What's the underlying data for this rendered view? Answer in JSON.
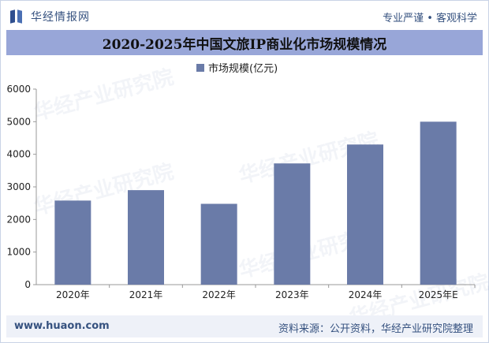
{
  "brand": {
    "name": "华经情报网",
    "logo_icon": "huajing-logo-icon"
  },
  "tagline": "专业严谨 • 客观科学",
  "title": "2020-2025年中国文旅IP商业化市场规模情况",
  "watermark": "华经产业研究院",
  "chart_data": {
    "type": "bar",
    "title": "2020-2025年中国文旅IP商业化市场规模情况",
    "categories": [
      "2020年",
      "2021年",
      "2022年",
      "2023年",
      "2024年",
      "2025年E"
    ],
    "series": [
      {
        "name": "市场规模(亿元)",
        "values": [
          2580,
          2900,
          2480,
          3720,
          4300,
          5000
        ]
      }
    ],
    "ylim": [
      0,
      6000
    ],
    "yticks": [
      0,
      1000,
      2000,
      3000,
      4000,
      5000,
      6000
    ],
    "legend_position": "top-center",
    "grid": false,
    "bar_color": "#6a7ba8"
  },
  "footer": {
    "site": "www.huaon.com",
    "source": "资料来源：公开资料，华经产业研究院整理"
  }
}
